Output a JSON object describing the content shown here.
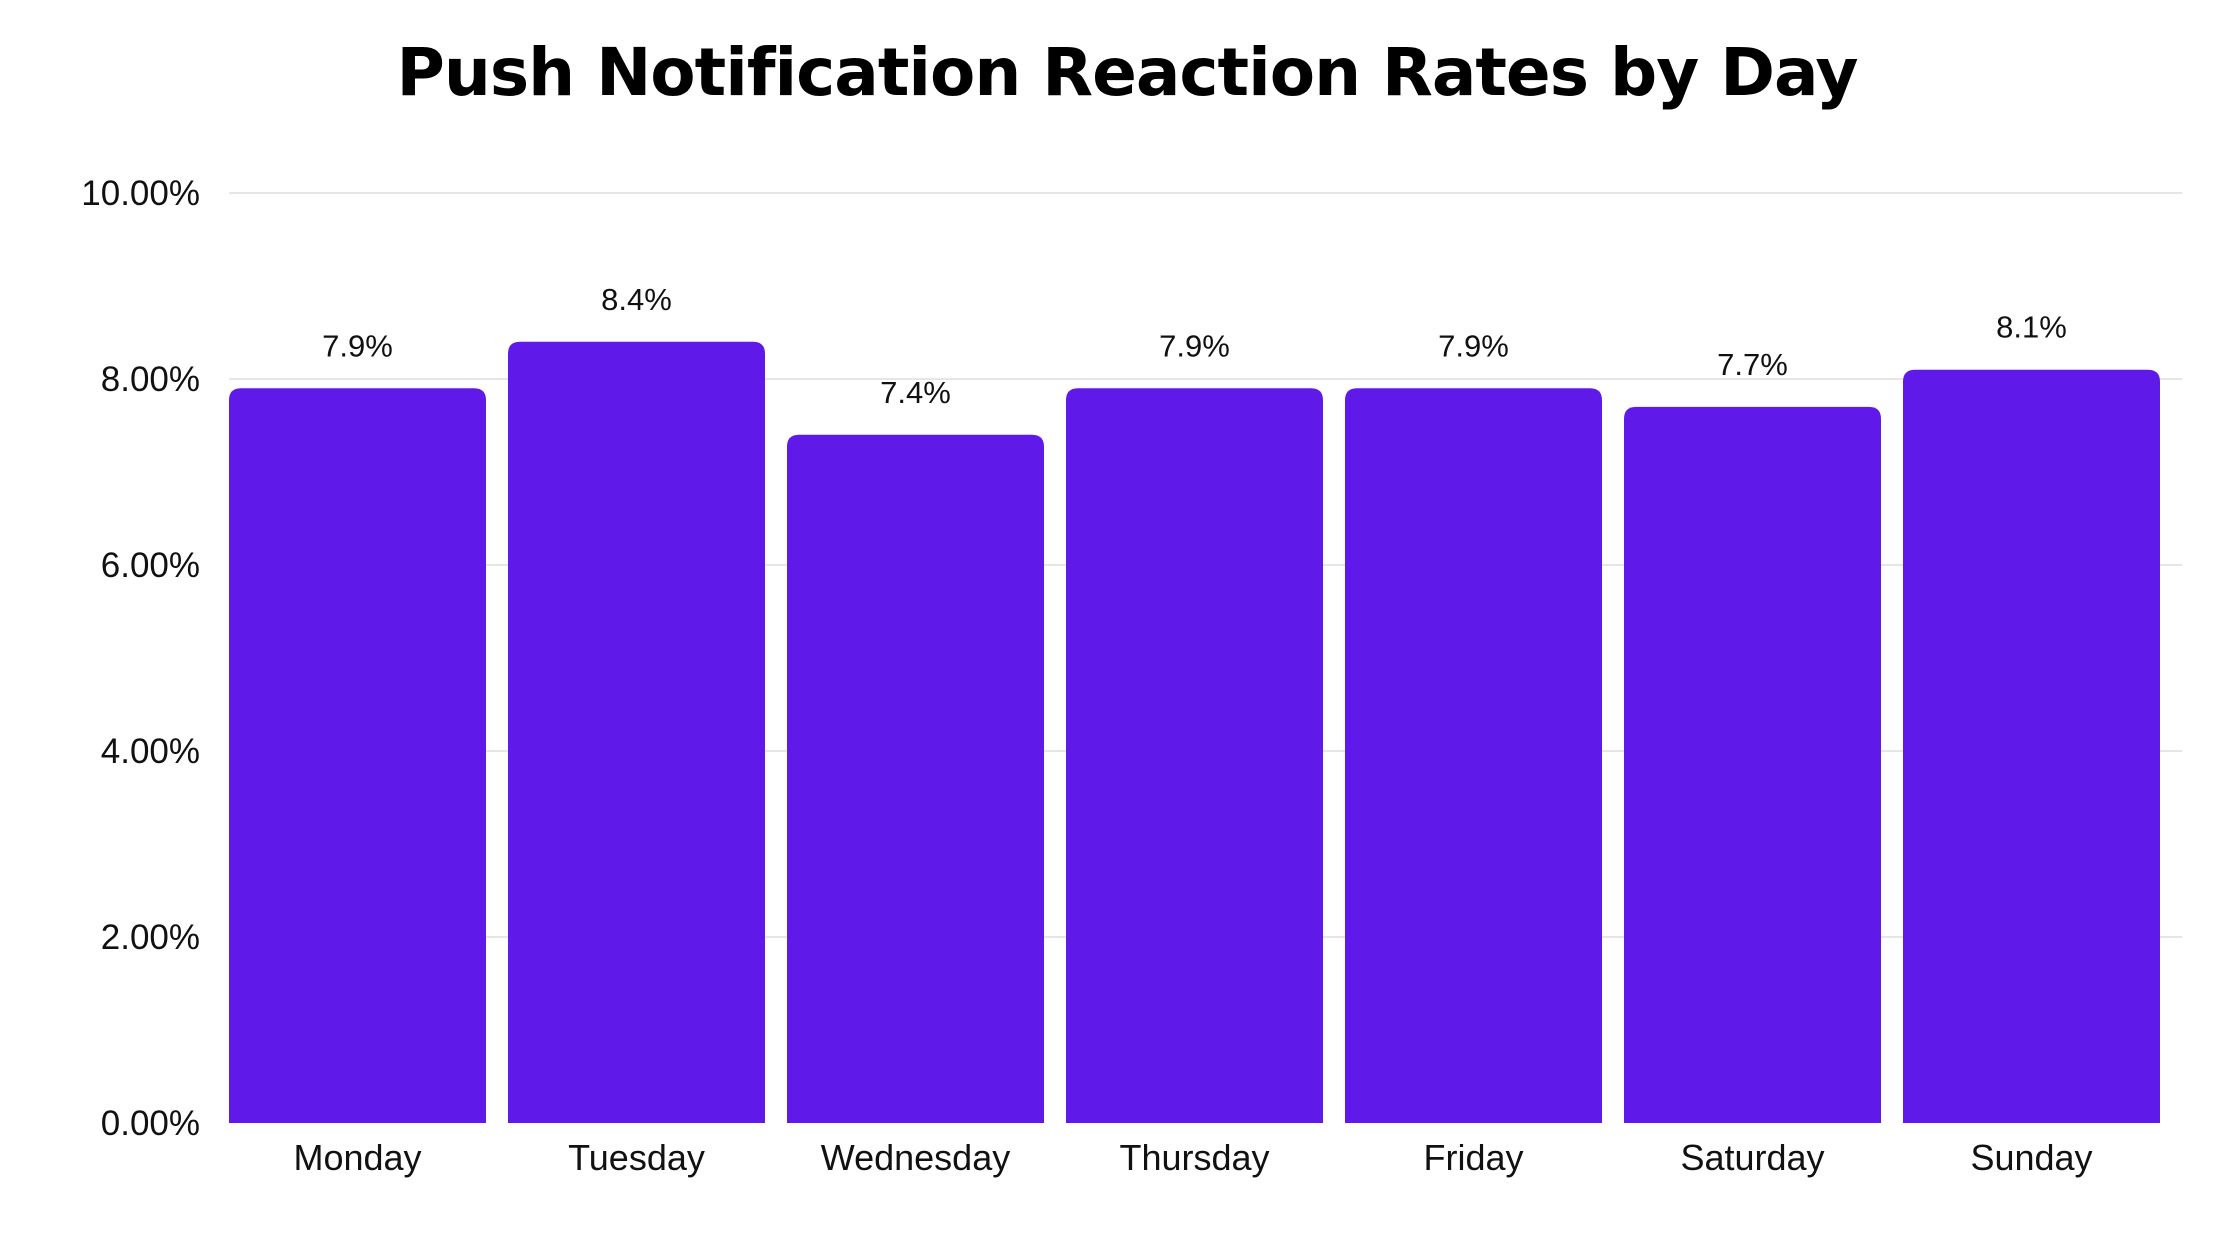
{
  "chart_data": {
    "type": "bar",
    "title": "Push Notification Reaction Rates by Day",
    "xlabel": "",
    "ylabel": "",
    "categories": [
      "Monday",
      "Tuesday",
      "Wednesday",
      "Thursday",
      "Friday",
      "Saturday",
      "Sunday"
    ],
    "values": [
      7.9,
      8.4,
      7.4,
      7.9,
      7.9,
      7.7,
      8.1
    ],
    "data_labels": [
      "7.9%",
      "8.4%",
      "7.4%",
      "7.9%",
      "7.9%",
      "7.7%",
      "8.1%"
    ],
    "ylim": [
      0,
      10
    ],
    "yticks": [
      0,
      2,
      4,
      6,
      8,
      10
    ],
    "ytick_labels": [
      "0.00%",
      "2.00%",
      "4.00%",
      "6.00%",
      "8.00%",
      "10.00%"
    ],
    "grid": true,
    "legend": "none",
    "bar_color": "#5f19e9"
  }
}
